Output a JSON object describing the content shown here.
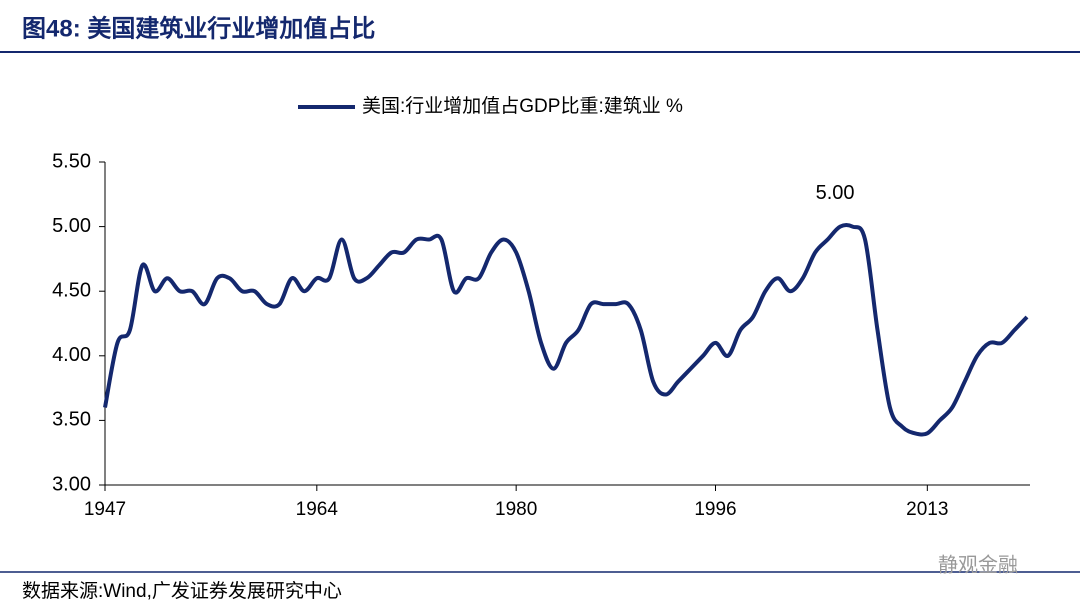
{
  "chart_data": {
    "type": "line",
    "title": "图48:  美国建筑业行业增加值占比",
    "source": "数据来源:Wind,广发证券发展研究中心",
    "watermark": "静观金融",
    "x": [
      1947,
      1948,
      1949,
      1950,
      1951,
      1952,
      1953,
      1954,
      1955,
      1956,
      1957,
      1958,
      1959,
      1960,
      1961,
      1962,
      1963,
      1964,
      1965,
      1966,
      1967,
      1968,
      1969,
      1970,
      1971,
      1972,
      1973,
      1974,
      1975,
      1976,
      1977,
      1978,
      1979,
      1980,
      1981,
      1982,
      1983,
      1984,
      1985,
      1986,
      1987,
      1988,
      1989,
      1990,
      1991,
      1992,
      1993,
      1994,
      1995,
      1996,
      1997,
      1998,
      1999,
      2000,
      2001,
      2002,
      2003,
      2004,
      2005,
      2006,
      2007,
      2008,
      2009,
      2010,
      2011,
      2012,
      2013,
      2014,
      2015,
      2016,
      2017,
      2018,
      2019,
      2020,
      2021
    ],
    "series": [
      {
        "name": "美国:行业增加值占GDP比重:建筑业 %",
        "color": "#14286e",
        "values": [
          3.6,
          4.1,
          4.2,
          4.7,
          4.5,
          4.6,
          4.5,
          4.5,
          4.4,
          4.6,
          4.6,
          4.5,
          4.5,
          4.4,
          4.4,
          4.6,
          4.5,
          4.6,
          4.6,
          4.9,
          4.6,
          4.6,
          4.7,
          4.8,
          4.8,
          4.9,
          4.9,
          4.9,
          4.5,
          4.6,
          4.6,
          4.8,
          4.9,
          4.8,
          4.5,
          4.1,
          3.9,
          4.1,
          4.2,
          4.4,
          4.4,
          4.4,
          4.4,
          4.2,
          3.8,
          3.7,
          3.8,
          3.9,
          4.0,
          4.1,
          4.0,
          4.2,
          4.3,
          4.5,
          4.6,
          4.5,
          4.6,
          4.8,
          4.9,
          5.0,
          5.0,
          4.9,
          4.2,
          3.6,
          3.45,
          3.4,
          3.4,
          3.5,
          3.6,
          3.8,
          4.0,
          4.1,
          4.1,
          4.2,
          4.3
        ]
      }
    ],
    "annotations": [
      {
        "text": "5.00",
        "x": 2006,
        "y": 5.0
      }
    ],
    "xlim": [
      1947,
      2021
    ],
    "xticks": [
      1947,
      1964,
      1980,
      1996,
      2013
    ],
    "ylim": [
      3,
      5.5
    ],
    "yticks": [
      {
        "value": 3,
        "label": "3.00"
      },
      {
        "value": 3.5,
        "label": "3.50"
      },
      {
        "value": 4,
        "label": "4.00"
      },
      {
        "value": 4.5,
        "label": "4.50"
      },
      {
        "value": 5,
        "label": "5.00"
      },
      {
        "value": 5.5,
        "label": "5.50"
      }
    ],
    "grid": false,
    "legend": "top"
  }
}
